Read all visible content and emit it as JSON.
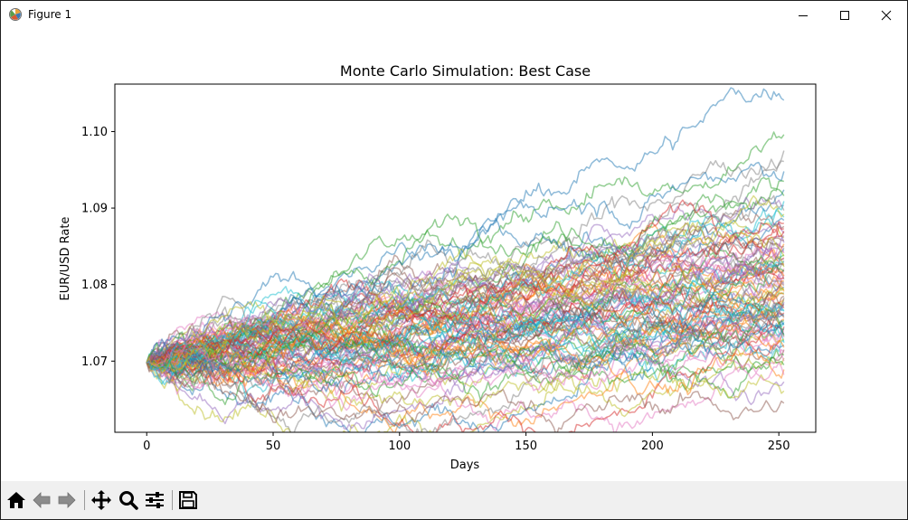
{
  "window": {
    "title": "Figure 1",
    "controls": [
      "minimize-icon",
      "maximize-icon",
      "close-icon"
    ]
  },
  "toolbar": {
    "buttons": [
      "home-icon",
      "back-icon",
      "forward-icon",
      "pan-icon",
      "zoom-icon",
      "configure-subplots-icon",
      "save-icon"
    ]
  },
  "chart_data": {
    "type": "line",
    "title": "Monte Carlo Simulation: Best Case",
    "xlabel": "Days",
    "ylabel": "EUR/USD Rate",
    "xlim": [
      -12.6,
      264.6
    ],
    "ylim": [
      1.0607,
      1.1062
    ],
    "xticks": [
      0,
      50,
      100,
      150,
      200,
      250
    ],
    "xtick_labels": [
      "0",
      "50",
      "100",
      "150",
      "200",
      "250"
    ],
    "yticks": [
      1.07,
      1.08,
      1.09,
      1.1
    ],
    "ytick_labels": [
      "1.07",
      "1.08",
      "1.09",
      "1.10"
    ],
    "grid": false,
    "legend": false,
    "line_alpha": 0.5,
    "series_count": 100,
    "num_days": 252,
    "start_value": 1.0698,
    "end_range": [
      1.0645,
      1.1041
    ],
    "end_values": [
      1.1041,
      1.0996,
      1.0975,
      1.0961,
      1.0948,
      1.0935,
      1.0924,
      1.0916,
      1.0909,
      1.0903,
      1.0897,
      1.0892,
      1.0888,
      1.0884,
      1.088,
      1.0876,
      1.0873,
      1.087,
      1.0867,
      1.0864,
      1.0861,
      1.0858,
      1.0855,
      1.0853,
      1.085,
      1.0848,
      1.0846,
      1.0843,
      1.0841,
      1.0839,
      1.0837,
      1.0835,
      1.0833,
      1.0831,
      1.0829,
      1.0827,
      1.0825,
      1.0823,
      1.0821,
      1.0819,
      1.0817,
      1.0815,
      1.0813,
      1.0811,
      1.0809,
      1.0807,
      1.0805,
      1.0803,
      1.0801,
      1.0799,
      1.0797,
      1.0795,
      1.0793,
      1.0791,
      1.0789,
      1.0787,
      1.0785,
      1.0783,
      1.0781,
      1.0779,
      1.0777,
      1.0775,
      1.0773,
      1.0771,
      1.0769,
      1.0767,
      1.0765,
      1.0763,
      1.0761,
      1.0759,
      1.0757,
      1.0755,
      1.0753,
      1.0751,
      1.0749,
      1.0747,
      1.0745,
      1.0743,
      1.0741,
      1.0739,
      1.0737,
      1.0735,
      1.0733,
      1.0731,
      1.0729,
      1.0727,
      1.0724,
      1.0721,
      1.0718,
      1.0715,
      1.0712,
      1.0708,
      1.0704,
      1.07,
      1.0695,
      1.0689,
      1.0682,
      1.0673,
      1.0661,
      1.0645
    ],
    "colors": [
      "#1f77b4",
      "#ff7f0e",
      "#2ca02c",
      "#d62728",
      "#9467bd",
      "#8c564b",
      "#e377c2",
      "#7f7f7f",
      "#bcbd22",
      "#17becf"
    ]
  }
}
